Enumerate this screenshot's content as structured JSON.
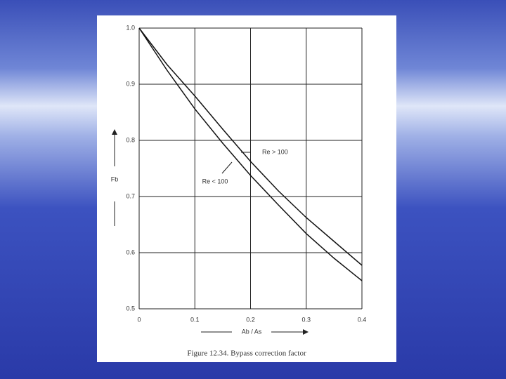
{
  "chart_data": {
    "type": "line",
    "x_label": "Ab / As",
    "y_label": "Fb",
    "caption": "Figure 12.34.   Bypass correction factor",
    "x": [
      0,
      0.05,
      0.1,
      0.15,
      0.2,
      0.25,
      0.3,
      0.35,
      0.4
    ],
    "series": [
      {
        "name": "Re > 100",
        "color": "#111111",
        "values": [
          1.0,
          0.935,
          0.879,
          0.82,
          0.7625,
          0.71,
          0.6625,
          0.62,
          0.5775
        ]
      },
      {
        "name": "Re < 100",
        "color": "#111111",
        "values": [
          1.0,
          0.925,
          0.856,
          0.795,
          0.7375,
          0.685,
          0.634,
          0.59,
          0.55
        ]
      }
    ],
    "xlim": [
      0,
      0.4
    ],
    "xticks": [
      0,
      0.1,
      0.2,
      0.3,
      0.4
    ],
    "ylim": [
      0.5,
      1.0
    ],
    "yticks": [
      {
        "value": 0.5,
        "label": "0.5"
      },
      0.6,
      0.7,
      0.8,
      0.9,
      {
        "value": 1.0,
        "label": "1.0"
      }
    ],
    "grid": true
  }
}
